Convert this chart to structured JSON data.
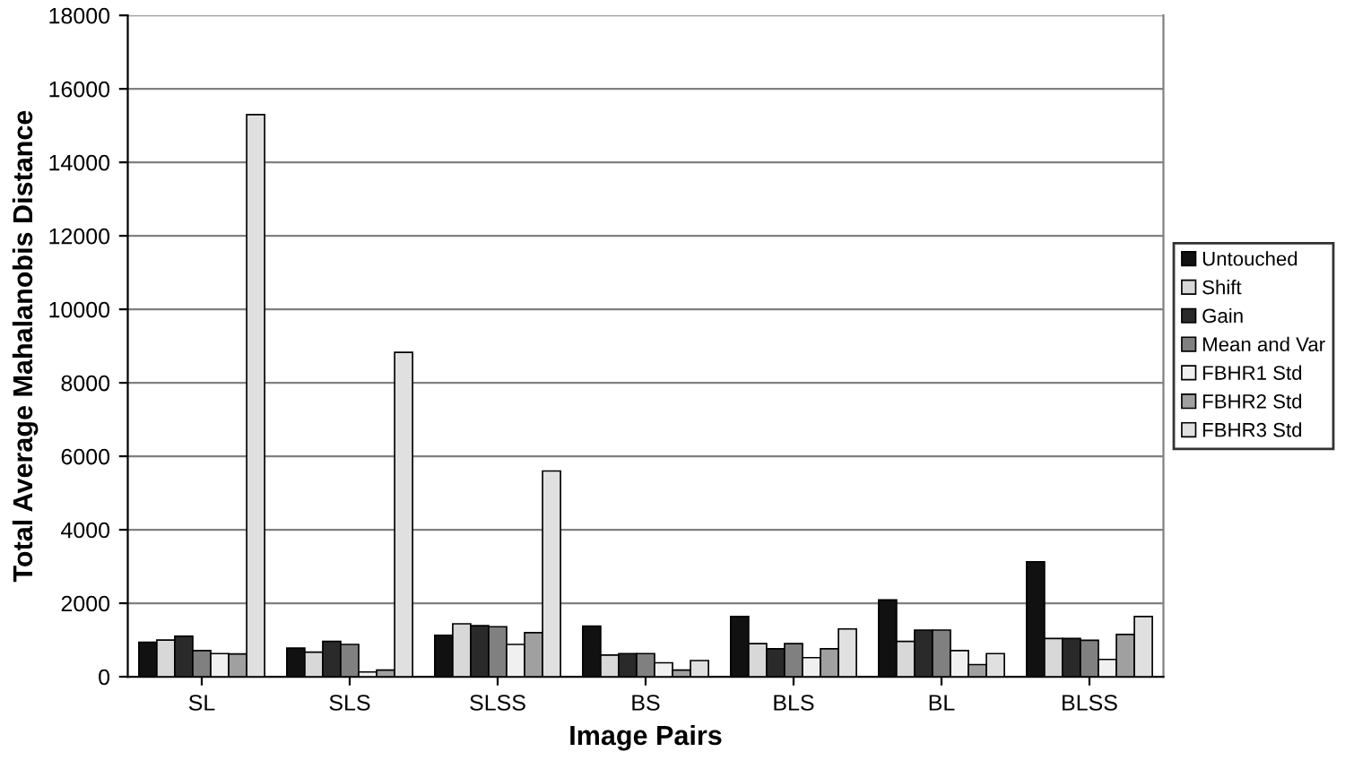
{
  "chart_data": {
    "type": "bar",
    "xlabel": "Image Pairs",
    "ylabel": "Total Average Mahalanobis Distance",
    "categories": [
      "SL",
      "SLS",
      "SLSS",
      "BS",
      "BLS",
      "BL",
      "BLSS"
    ],
    "series": [
      {
        "name": "Untouched",
        "color": "#111111",
        "values": [
          940,
          780,
          1130,
          1380,
          1640,
          2090,
          3130
        ]
      },
      {
        "name": "Shift",
        "color": "#d8d8d8",
        "values": [
          1000,
          670,
          1440,
          590,
          900,
          960,
          1040
        ]
      },
      {
        "name": "Gain",
        "color": "#2a2a2a",
        "values": [
          1100,
          960,
          1390,
          630,
          760,
          1270,
          1040
        ]
      },
      {
        "name": "Mean and Var",
        "color": "#808080",
        "values": [
          710,
          880,
          1360,
          630,
          900,
          1270,
          990
        ]
      },
      {
        "name": "FBHR1 Std",
        "color": "#f0f0f0",
        "values": [
          630,
          130,
          880,
          380,
          520,
          710,
          470
        ]
      },
      {
        "name": "FBHR2 Std",
        "color": "#a0a0a0",
        "values": [
          620,
          180,
          1200,
          180,
          760,
          330,
          1150
        ]
      },
      {
        "name": "FBHR3 Std",
        "color": "#e0e0e0",
        "values": [
          15300,
          8830,
          5600,
          440,
          1300,
          630,
          1640
        ]
      }
    ],
    "ylim": [
      0,
      18000
    ],
    "yticks": [
      0,
      2000,
      4000,
      6000,
      8000,
      10000,
      12000,
      14000,
      16000,
      18000
    ],
    "grid": "y",
    "legend": "right"
  }
}
